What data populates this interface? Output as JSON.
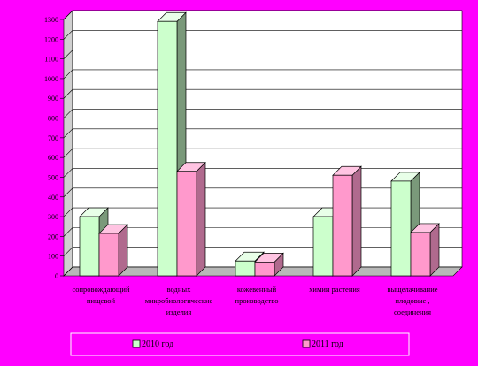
{
  "colors": {
    "background": "#ff00ff",
    "plot_face": "#ffffff",
    "plot_side": "#d0d0d0",
    "plot_floor": "#b8b8b8",
    "grid": "#000000",
    "series_2010": {
      "front": "#ccffcc",
      "top": "#e8ffe8",
      "side": "#7a997a"
    },
    "series_2011": {
      "front": "#ff99cc",
      "top": "#ffc4e2",
      "side": "#b06a8e"
    },
    "legend_bg": "#ff00ff"
  },
  "chart_data": {
    "type": "bar",
    "title": "",
    "xlabel": "",
    "ylabel": "",
    "ylim": [
      0,
      1300
    ],
    "yticks": [
      0,
      100,
      200,
      300,
      400,
      500,
      600,
      700,
      800,
      900,
      1000,
      1100,
      1200,
      1300
    ],
    "grid": true,
    "legend_position": "bottom",
    "categories": [
      [
        "сопровождающий",
        "пищевой"
      ],
      [
        "водных",
        "микробиологические",
        "изделия"
      ],
      [
        "кожевенный",
        "производство"
      ],
      [
        "химии растения"
      ],
      [
        "выщелачивание",
        "плодовые ,",
        "соединения"
      ]
    ],
    "series": [
      {
        "name": "2010 год",
        "values": [
          300,
          1290,
          75,
          300,
          480
        ]
      },
      {
        "name": "2011 год",
        "values": [
          215,
          530,
          70,
          510,
          220
        ]
      }
    ]
  }
}
